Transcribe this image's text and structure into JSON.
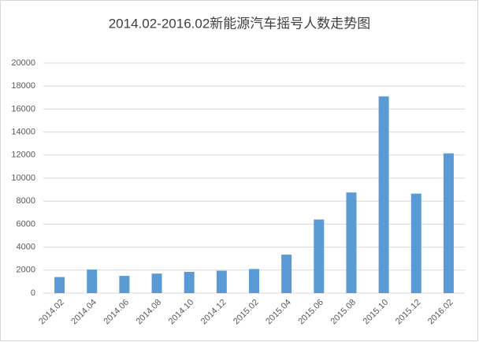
{
  "chart_data": {
    "type": "bar",
    "title": "2014.02-2016.02新能源汽车摇号人数走势图",
    "categories": [
      "2014.02",
      "2014.04",
      "2014.06",
      "2014.08",
      "2014.10",
      "2014.12",
      "2015.02",
      "2015.04",
      "2015.06",
      "2015.08",
      "2015.10",
      "2015.12",
      "2016.02"
    ],
    "values": [
      1400,
      2050,
      1500,
      1700,
      1850,
      1950,
      2100,
      3350,
      6400,
      8750,
      17100,
      8650,
      12150
    ],
    "color": "#5b9bd5",
    "ylim": [
      0,
      20000
    ],
    "yticks": [
      0,
      2000,
      4000,
      6000,
      8000,
      10000,
      12000,
      14000,
      16000,
      18000,
      20000
    ],
    "grid": true
  }
}
